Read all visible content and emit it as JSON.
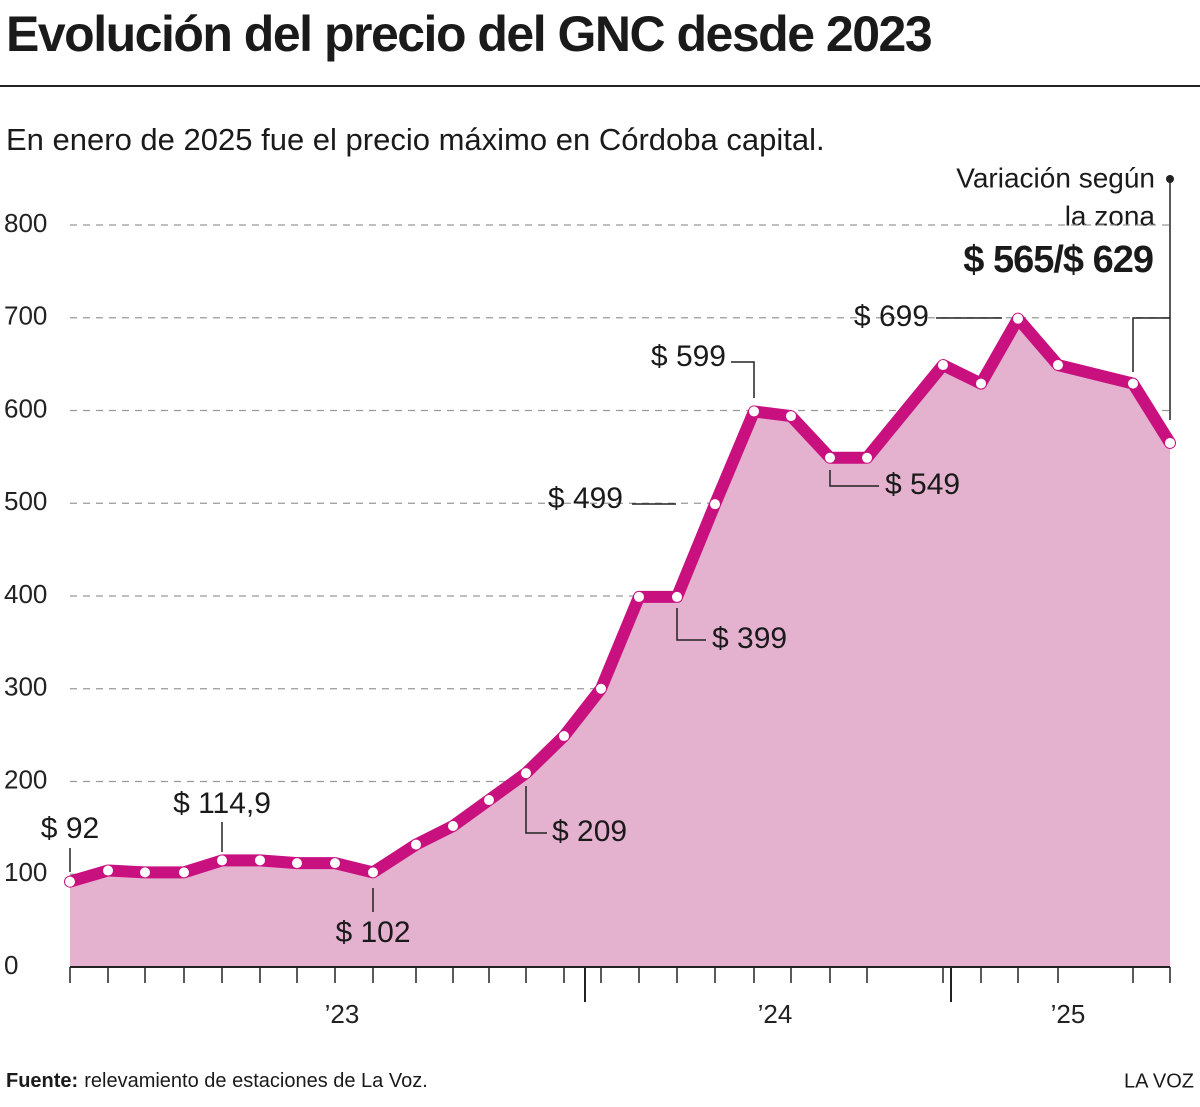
{
  "chart_data": {
    "type": "line",
    "title": "Evolución del precio del GNC desde 2023",
    "subtitle": "En enero de 2025 fue el precio máximo en Córdoba capital.",
    "categories": [
      null,
      null,
      null,
      null,
      null,
      null,
      null,
      "’23",
      null,
      null,
      null,
      null,
      null,
      null,
      null,
      null,
      null,
      null,
      "’24",
      null,
      null,
      null,
      null,
      null,
      null,
      null,
      "’25",
      null
    ],
    "values": [
      92,
      104,
      102,
      102,
      114.9,
      115,
      112,
      112,
      102,
      132,
      152,
      180,
      209,
      249,
      300,
      399,
      399,
      499,
      599,
      594,
      549,
      549,
      649,
      629,
      699,
      649,
      629,
      565
    ],
    "value_labels": [
      "$ 92",
      null,
      null,
      null,
      "$ 114,9",
      null,
      null,
      null,
      "$ 102",
      null,
      null,
      null,
      "$ 209",
      null,
      null,
      null,
      "$ 399",
      "$ 499",
      "$ 599",
      null,
      "$ 549",
      null,
      null,
      null,
      "$ 699",
      null,
      null,
      null
    ],
    "color": "#c8117e",
    "area_color": "#e4b1cf",
    "ylim": [
      0,
      800
    ],
    "yticks": [
      0,
      100,
      200,
      300,
      400,
      500,
      600,
      700,
      800
    ],
    "grid": true,
    "annotation": {
      "lines": [
        "Variación según",
        "la zona"
      ],
      "value": "$ 565/$ 629"
    },
    "source_label": "Fuente:",
    "source": "relevamiento de estaciones de La Voz.",
    "brand": "LA VOZ"
  }
}
